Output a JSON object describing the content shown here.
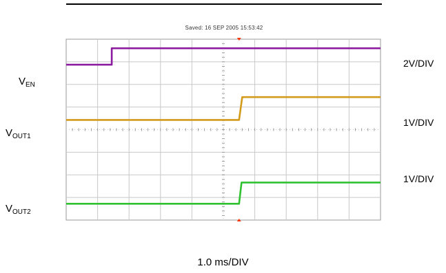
{
  "header": {
    "saved_text": "Saved:  16 SEP 2005  15:53:42"
  },
  "channels": [
    {
      "label_main": "V",
      "label_sub": "EN",
      "scale": "2V/DIV"
    },
    {
      "label_main": "V",
      "label_sub": "OUT1",
      "scale": "1V/DIV"
    },
    {
      "label_main": "V",
      "label_sub": "OUT2",
      "scale": "1V/DIV"
    }
  ],
  "timebase": "1.0 ms/DIV",
  "chart_data": {
    "type": "line",
    "x_units": "divisions",
    "y_units": "divisions",
    "xlim": [
      0,
      10
    ],
    "ylim": [
      0,
      8
    ],
    "grid": true,
    "grid_divisions": {
      "x": 10,
      "y": 8
    },
    "trigger_marker_x": 5.5,
    "series": [
      {
        "name": "VEN",
        "color": "#8b1a9e",
        "points": [
          [
            0,
            6.87
          ],
          [
            1.45,
            6.87
          ],
          [
            1.45,
            7.6
          ],
          [
            10,
            7.6
          ]
        ]
      },
      {
        "name": "VOUT1",
        "color": "#d49a1a",
        "points": [
          [
            0,
            4.43
          ],
          [
            5.5,
            4.43
          ],
          [
            5.6,
            5.44
          ],
          [
            10,
            5.44
          ]
        ]
      },
      {
        "name": "VOUT2",
        "color": "#2fc130",
        "points": [
          [
            0,
            0.72
          ],
          [
            5.5,
            0.72
          ],
          [
            5.58,
            1.66
          ],
          [
            10,
            1.66
          ]
        ]
      }
    ],
    "colors": {
      "grid": "#c8c8c8",
      "center_axis": "#9a9a9a",
      "trigger": "#ff3300"
    }
  }
}
